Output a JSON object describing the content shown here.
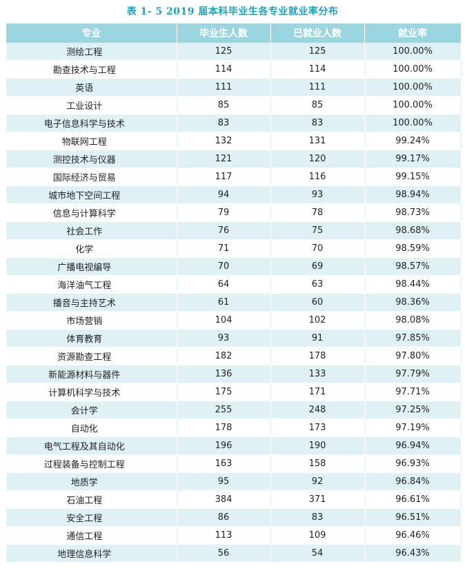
{
  "caption": "表 1- 5    2019 届本科毕业生各专业就业率分布",
  "headers": [
    "专业",
    "毕业生人数",
    "已就业人数",
    "就业率"
  ],
  "rows": [
    [
      "测绘工程",
      "125",
      "125",
      "100.00%"
    ],
    [
      "勘查技术与工程",
      "114",
      "114",
      "100.00%"
    ],
    [
      "英语",
      "111",
      "111",
      "100.00%"
    ],
    [
      "工业设计",
      "85",
      "85",
      "100.00%"
    ],
    [
      "电子信息科学与技术",
      "83",
      "83",
      "100.00%"
    ],
    [
      "物联网工程",
      "132",
      "131",
      "99.24%"
    ],
    [
      "测控技术与仪器",
      "121",
      "120",
      "99.17%"
    ],
    [
      "国际经济与贸易",
      "117",
      "116",
      "99.15%"
    ],
    [
      "城市地下空间工程",
      "94",
      "93",
      "98.94%"
    ],
    [
      "信息与计算科学",
      "79",
      "78",
      "98.73%"
    ],
    [
      "社会工作",
      "76",
      "75",
      "98.68%"
    ],
    [
      "化学",
      "71",
      "70",
      "98.59%"
    ],
    [
      "广播电视编导",
      "70",
      "69",
      "98.57%"
    ],
    [
      "海洋油气工程",
      "64",
      "63",
      "98.44%"
    ],
    [
      "播音与主持艺术",
      "61",
      "60",
      "98.36%"
    ],
    [
      "市场营销",
      "104",
      "102",
      "98.08%"
    ],
    [
      "体育教育",
      "93",
      "91",
      "97.85%"
    ],
    [
      "资源勘查工程",
      "182",
      "178",
      "97.80%"
    ],
    [
      "新能源材料与器件",
      "136",
      "133",
      "97.79%"
    ],
    [
      "计算机科学与技术",
      "175",
      "171",
      "97.71%"
    ],
    [
      "会计学",
      "255",
      "248",
      "97.25%"
    ],
    [
      "自动化",
      "178",
      "173",
      "97.19%"
    ],
    [
      "电气工程及其自动化",
      "196",
      "190",
      "96.94%"
    ],
    [
      "过程装备与控制工程",
      "163",
      "158",
      "96.93%"
    ],
    [
      "地质学",
      "95",
      "92",
      "96.84%"
    ],
    [
      "石油工程",
      "384",
      "371",
      "96.61%"
    ],
    [
      "安全工程",
      "86",
      "83",
      "96.51%"
    ],
    [
      "通信工程",
      "113",
      "109",
      "96.46%"
    ],
    [
      "地理信息科学",
      "56",
      "54",
      "96.43%"
    ]
  ],
  "colors": {
    "caption": "#1aa3b6",
    "header_bg": "#9bd6e0",
    "stripe_bg": "#dff1f5"
  }
}
